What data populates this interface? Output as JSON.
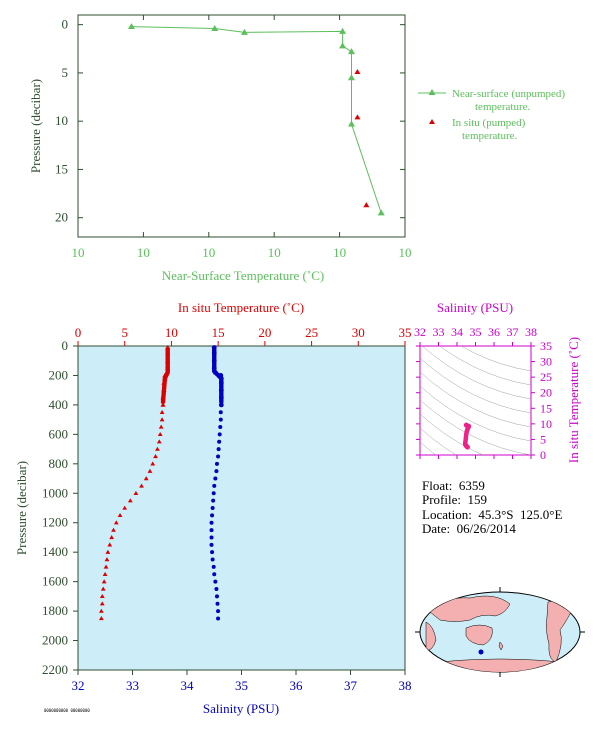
{
  "colors": {
    "green": "#5cbf5c",
    "red": "#dd0000",
    "blue": "#0000c0",
    "magenta": "#cc00cc",
    "pink": "#ee2288",
    "axis_text": "#2f4f2f",
    "panel_bg": "#cdeef8"
  },
  "info": {
    "float": "Float:  6359",
    "profile": "Profile:  159",
    "location": "Location:  45.3°S  125.0°E",
    "date": "Date:  06/26/2014"
  },
  "footer_code": "0000000000 00000000",
  "map": {
    "marker_lon": 125.0,
    "marker_lat": -45.3
  },
  "chart_data": [
    {
      "type": "line",
      "xlabel": "Near-Surface Temperature (˚C)",
      "ylabel": "Pressure (decibar)",
      "x_tick_labels": [
        "10",
        "10",
        "10",
        "10",
        "10",
        "10"
      ],
      "y_ticks": [
        0,
        5,
        10,
        15,
        20
      ],
      "ylim": [
        22,
        -1
      ],
      "xlim": [
        9.15,
        9.7
      ],
      "legend": {
        "placement": "right",
        "near_surface_label_1": "Near-surface (unpumped)",
        "near_surface_label_2": "temperature.",
        "in_situ_label_1": "In situ (pumped)",
        "in_situ_label_2": "temperature."
      },
      "series": [
        {
          "name": "Near-surface (unpumped) temperature.",
          "x": [
            9.24,
            9.38,
            9.43,
            9.595,
            9.595,
            9.61,
            9.61,
            9.61,
            9.66
          ],
          "y": [
            0.2,
            0.4,
            0.8,
            0.7,
            2.2,
            2.8,
            5.5,
            10.3,
            19.5
          ]
        },
        {
          "name": "In situ (pumped) temperature.",
          "x": [
            9.62,
            9.62,
            9.635
          ],
          "y": [
            4.9,
            9.6,
            18.7
          ]
        }
      ]
    },
    {
      "type": "scatter",
      "top_xlabel": "In situ Temperature (˚C)",
      "bottom_xlabel": "Salinity (PSU)",
      "ylabel": "Pressure (decibar)",
      "temp_ticks": [
        0,
        5,
        10,
        15,
        20,
        25,
        30,
        35
      ],
      "sal_ticks": [
        32,
        33,
        34,
        35,
        36,
        37,
        38
      ],
      "pres_ticks": [
        0,
        200,
        400,
        600,
        800,
        1000,
        1200,
        1400,
        1600,
        1800,
        2000,
        2200
      ],
      "pressure": [
        10,
        50,
        100,
        150,
        180,
        200,
        220,
        250,
        300,
        350,
        400,
        450,
        500,
        550,
        600,
        650,
        700,
        750,
        800,
        850,
        900,
        950,
        1000,
        1050,
        1100,
        1150,
        1200,
        1250,
        1300,
        1350,
        1400,
        1450,
        1500,
        1550,
        1600,
        1650,
        1700,
        1750,
        1800,
        1850
      ],
      "temperature": [
        9.6,
        9.6,
        9.6,
        9.6,
        9.5,
        9.3,
        9.3,
        9.2,
        9.2,
        9.1,
        9.1,
        9.0,
        9.0,
        8.9,
        8.8,
        8.7,
        8.5,
        8.3,
        8.0,
        7.7,
        7.3,
        6.8,
        6.2,
        5.6,
        5.0,
        4.5,
        4.1,
        3.8,
        3.6,
        3.4,
        3.2,
        3.1,
        3.0,
        2.9,
        2.8,
        2.7,
        2.6,
        2.6,
        2.5,
        2.5
      ],
      "salinity": [
        34.5,
        34.5,
        34.5,
        34.5,
        34.52,
        34.62,
        34.63,
        34.63,
        34.63,
        34.63,
        34.63,
        34.62,
        34.62,
        34.61,
        34.6,
        34.59,
        34.58,
        34.57,
        34.55,
        34.54,
        34.52,
        34.5,
        34.49,
        34.48,
        34.47,
        34.46,
        34.45,
        34.45,
        34.45,
        34.45,
        34.46,
        34.47,
        34.49,
        34.5,
        34.52,
        34.54,
        34.55,
        34.56,
        34.57,
        34.57
      ],
      "series": [
        {
          "name": "In situ Temperature (˚C)"
        },
        {
          "name": "Salinity (PSU)"
        }
      ],
      "ylim": [
        2200,
        0
      ]
    },
    {
      "type": "scatter",
      "top_xlabel": "Salinity (PSU)",
      "ylabel": "In situ Temperature (˚C)",
      "sal_ticks": [
        32,
        33,
        34,
        35,
        36,
        37,
        38
      ],
      "temp_ticks": [
        0,
        5,
        10,
        15,
        20,
        25,
        30,
        35
      ],
      "xlim": [
        32,
        38
      ],
      "ylim": [
        0,
        35
      ]
    }
  ]
}
